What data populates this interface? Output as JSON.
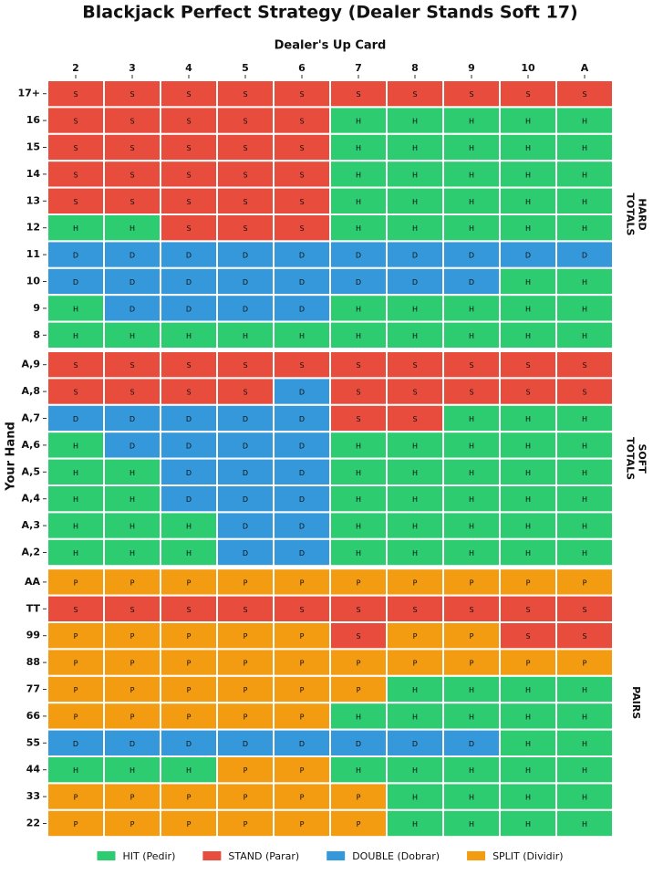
{
  "chart_data": {
    "type": "heatmap",
    "title": "Blackjack Perfect Strategy (Dealer Stands Soft 17)",
    "x_label": "Dealer's Up Card",
    "y_label": "Your Hand",
    "categories": [
      "2",
      "3",
      "4",
      "5",
      "6",
      "7",
      "8",
      "9",
      "10",
      "A"
    ],
    "sections": [
      {
        "label": [
          "HARD",
          "TOTALS"
        ],
        "rows": [
          {
            "label": "17+",
            "cells": [
              "S",
              "S",
              "S",
              "S",
              "S",
              "S",
              "S",
              "S",
              "S",
              "S"
            ]
          },
          {
            "label": "16",
            "cells": [
              "S",
              "S",
              "S",
              "S",
              "S",
              "H",
              "H",
              "H",
              "H",
              "H"
            ]
          },
          {
            "label": "15",
            "cells": [
              "S",
              "S",
              "S",
              "S",
              "S",
              "H",
              "H",
              "H",
              "H",
              "H"
            ]
          },
          {
            "label": "14",
            "cells": [
              "S",
              "S",
              "S",
              "S",
              "S",
              "H",
              "H",
              "H",
              "H",
              "H"
            ]
          },
          {
            "label": "13",
            "cells": [
              "S",
              "S",
              "S",
              "S",
              "S",
              "H",
              "H",
              "H",
              "H",
              "H"
            ]
          },
          {
            "label": "12",
            "cells": [
              "H",
              "H",
              "S",
              "S",
              "S",
              "H",
              "H",
              "H",
              "H",
              "H"
            ]
          },
          {
            "label": "11",
            "cells": [
              "D",
              "D",
              "D",
              "D",
              "D",
              "D",
              "D",
              "D",
              "D",
              "D"
            ]
          },
          {
            "label": "10",
            "cells": [
              "D",
              "D",
              "D",
              "D",
              "D",
              "D",
              "D",
              "D",
              "H",
              "H"
            ]
          },
          {
            "label": "9",
            "cells": [
              "H",
              "D",
              "D",
              "D",
              "D",
              "H",
              "H",
              "H",
              "H",
              "H"
            ]
          },
          {
            "label": "8",
            "cells": [
              "H",
              "H",
              "H",
              "H",
              "H",
              "H",
              "H",
              "H",
              "H",
              "H"
            ]
          }
        ]
      },
      {
        "label": [
          "SOFT",
          "TOTALS"
        ],
        "rows": [
          {
            "label": "A,9",
            "cells": [
              "S",
              "S",
              "S",
              "S",
              "S",
              "S",
              "S",
              "S",
              "S",
              "S"
            ]
          },
          {
            "label": "A,8",
            "cells": [
              "S",
              "S",
              "S",
              "S",
              "D",
              "S",
              "S",
              "S",
              "S",
              "S"
            ]
          },
          {
            "label": "A,7",
            "cells": [
              "D",
              "D",
              "D",
              "D",
              "D",
              "S",
              "S",
              "H",
              "H",
              "H"
            ]
          },
          {
            "label": "A,6",
            "cells": [
              "H",
              "D",
              "D",
              "D",
              "D",
              "H",
              "H",
              "H",
              "H",
              "H"
            ]
          },
          {
            "label": "A,5",
            "cells": [
              "H",
              "H",
              "D",
              "D",
              "D",
              "H",
              "H",
              "H",
              "H",
              "H"
            ]
          },
          {
            "label": "A,4",
            "cells": [
              "H",
              "H",
              "D",
              "D",
              "D",
              "H",
              "H",
              "H",
              "H",
              "H"
            ]
          },
          {
            "label": "A,3",
            "cells": [
              "H",
              "H",
              "H",
              "D",
              "D",
              "H",
              "H",
              "H",
              "H",
              "H"
            ]
          },
          {
            "label": "A,2",
            "cells": [
              "H",
              "H",
              "H",
              "D",
              "D",
              "H",
              "H",
              "H",
              "H",
              "H"
            ]
          }
        ]
      },
      {
        "label": [
          "PAIRS"
        ],
        "rows": [
          {
            "label": "AA",
            "cells": [
              "P",
              "P",
              "P",
              "P",
              "P",
              "P",
              "P",
              "P",
              "P",
              "P"
            ]
          },
          {
            "label": "TT",
            "cells": [
              "S",
              "S",
              "S",
              "S",
              "S",
              "S",
              "S",
              "S",
              "S",
              "S"
            ]
          },
          {
            "label": "99",
            "cells": [
              "P",
              "P",
              "P",
              "P",
              "P",
              "S",
              "P",
              "P",
              "S",
              "S"
            ]
          },
          {
            "label": "88",
            "cells": [
              "P",
              "P",
              "P",
              "P",
              "P",
              "P",
              "P",
              "P",
              "P",
              "P"
            ]
          },
          {
            "label": "77",
            "cells": [
              "P",
              "P",
              "P",
              "P",
              "P",
              "P",
              "H",
              "H",
              "H",
              "H"
            ]
          },
          {
            "label": "66",
            "cells": [
              "P",
              "P",
              "P",
              "P",
              "P",
              "H",
              "H",
              "H",
              "H",
              "H"
            ]
          },
          {
            "label": "55",
            "cells": [
              "D",
              "D",
              "D",
              "D",
              "D",
              "D",
              "D",
              "D",
              "H",
              "H"
            ]
          },
          {
            "label": "44",
            "cells": [
              "H",
              "H",
              "H",
              "P",
              "P",
              "H",
              "H",
              "H",
              "H",
              "H"
            ]
          },
          {
            "label": "33",
            "cells": [
              "P",
              "P",
              "P",
              "P",
              "P",
              "P",
              "H",
              "H",
              "H",
              "H"
            ]
          },
          {
            "label": "22",
            "cells": [
              "P",
              "P",
              "P",
              "P",
              "P",
              "P",
              "H",
              "H",
              "H",
              "H"
            ]
          }
        ]
      }
    ],
    "legend": [
      {
        "code": "H",
        "label": "HIT (Pedir)",
        "color": "#2ecc71"
      },
      {
        "code": "S",
        "label": "STAND (Parar)",
        "color": "#e74c3c"
      },
      {
        "code": "D",
        "label": "DOUBLE (Dobrar)",
        "color": "#3498db"
      },
      {
        "code": "P",
        "label": "SPLIT (Dividir)",
        "color": "#f39c12"
      }
    ]
  }
}
